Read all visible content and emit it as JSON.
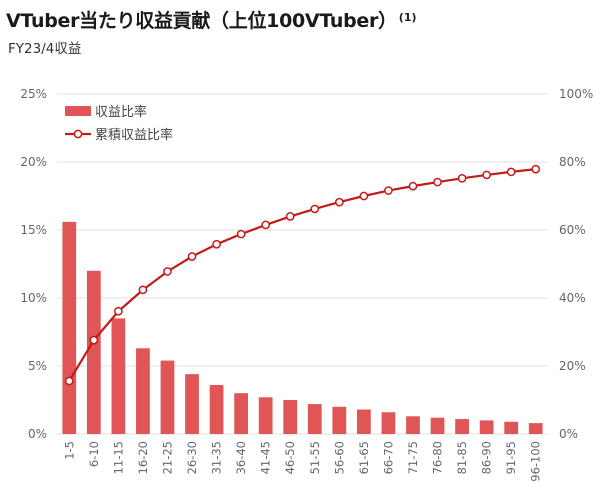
{
  "header": {
    "title": "VTuber当たり収益貢献（上位100VTuber）",
    "title_note": "(1)",
    "subtitle": "FY23/4収益"
  },
  "colors": {
    "bar": "#e05555",
    "line": "#c41a1a",
    "marker_fill": "#ffffff",
    "grid": "#e2e2e2"
  },
  "chart_data": {
    "type": "bar",
    "categories": [
      "1-5",
      "6-10",
      "11-15",
      "16-20",
      "21-25",
      "26-30",
      "31-35",
      "36-40",
      "41-45",
      "46-50",
      "51-55",
      "56-60",
      "61-65",
      "66-70",
      "71-75",
      "76-80",
      "81-85",
      "86-90",
      "91-95",
      "96-100"
    ],
    "series": [
      {
        "name": "収益比率",
        "type": "bar",
        "axis": "left",
        "values": [
          15.6,
          12.0,
          8.5,
          6.3,
          5.4,
          4.4,
          3.6,
          3.0,
          2.7,
          2.5,
          2.2,
          2.0,
          1.8,
          1.6,
          1.3,
          1.2,
          1.1,
          1.0,
          0.9,
          0.8
        ]
      },
      {
        "name": "累積収益比率",
        "type": "line",
        "axis": "right",
        "values": [
          15.6,
          27.6,
          36.1,
          42.4,
          47.8,
          52.2,
          55.8,
          58.8,
          61.5,
          64.0,
          66.2,
          68.2,
          70.0,
          71.6,
          72.9,
          74.1,
          75.2,
          76.2,
          77.1,
          77.9
        ]
      }
    ],
    "y_left": {
      "ticks": [
        "0%",
        "5%",
        "10%",
        "15%",
        "20%",
        "25%"
      ],
      "ylim": [
        0,
        25
      ]
    },
    "y_right": {
      "ticks": [
        "0%",
        "20%",
        "40%",
        "60%",
        "80%",
        "100%"
      ],
      "ylim": [
        0,
        100
      ]
    },
    "grid": true,
    "legend_position": "top-left"
  }
}
